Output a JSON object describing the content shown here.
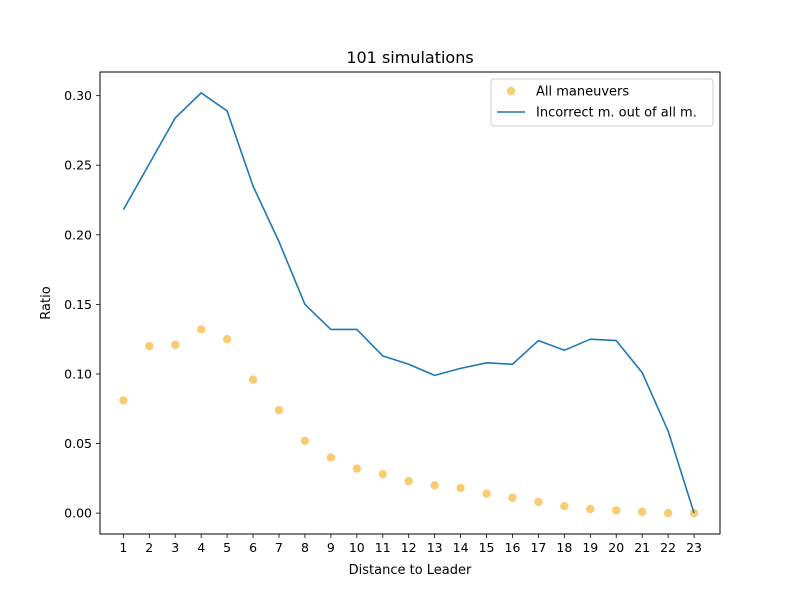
{
  "chart_data": {
    "type": "line",
    "title": "101 simulations",
    "xlabel": "Distance to Leader",
    "ylabel": "Ratio",
    "x": [
      1,
      2,
      3,
      4,
      5,
      6,
      7,
      8,
      9,
      10,
      11,
      12,
      13,
      14,
      15,
      16,
      17,
      18,
      19,
      20,
      21,
      22,
      23
    ],
    "xticks": [
      "1",
      "2",
      "3",
      "4",
      "5",
      "6",
      "7",
      "8",
      "9",
      "10",
      "11",
      "12",
      "13",
      "14",
      "15",
      "16",
      "17",
      "18",
      "19",
      "20",
      "21",
      "22",
      "23"
    ],
    "yticks": [
      "0.00",
      "0.05",
      "0.10",
      "0.15",
      "0.20",
      "0.25",
      "0.30"
    ],
    "ylim": [
      -0.015,
      0.317
    ],
    "xlim": [
      0.1,
      24.0
    ],
    "grid": false,
    "legend_position": "upper-right",
    "series": [
      {
        "name": "All maneuvers",
        "kind": "scatter",
        "color": "#f8c25a",
        "values": [
          0.081,
          0.12,
          0.121,
          0.132,
          0.125,
          0.096,
          0.074,
          0.052,
          0.04,
          0.032,
          0.028,
          0.023,
          0.02,
          0.018,
          0.014,
          0.011,
          0.008,
          0.005,
          0.003,
          0.002,
          0.001,
          0.0,
          0.0
        ]
      },
      {
        "name": "Incorrect m. out of all m.",
        "kind": "line",
        "color": "#1f77b4",
        "values": [
          0.218,
          0.251,
          0.284,
          0.302,
          0.289,
          0.235,
          0.195,
          0.15,
          0.132,
          0.132,
          0.113,
          0.107,
          0.099,
          0.104,
          0.108,
          0.107,
          0.124,
          0.117,
          0.125,
          0.124,
          0.101,
          0.059,
          0.0
        ]
      }
    ]
  }
}
